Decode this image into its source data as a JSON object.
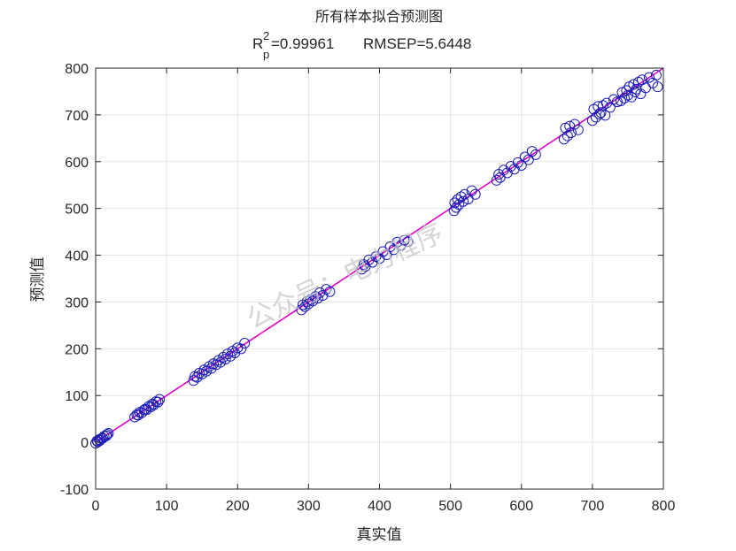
{
  "colors": {
    "background": "#ffffff",
    "axis": "#262626",
    "grid": "#e3e3e3",
    "points": "#1a1ab8",
    "fit_line": "#e000c8",
    "watermark": "#c7c7c7"
  },
  "watermark": "公众号：电力程序",
  "chart_data": {
    "type": "scatter",
    "title": "所有样本拟合预测图",
    "subtitle": {
      "r_symbol": "R",
      "r_superscript": "2",
      "r_subscript": "p",
      "r_value": "=0.99961",
      "rmsep_text": "RMSEP=5.6448"
    },
    "xlabel": "真实值",
    "ylabel": "预测值",
    "xlim": [
      0,
      800
    ],
    "ylim": [
      -100,
      800
    ],
    "xticks": [
      0,
      100,
      200,
      300,
      400,
      500,
      600,
      700,
      800
    ],
    "yticks": [
      -100,
      0,
      100,
      200,
      300,
      400,
      500,
      600,
      700,
      800
    ],
    "grid": true,
    "marker": "open-circle",
    "fit_line": {
      "x": [
        0,
        800
      ],
      "y": [
        0,
        800
      ]
    },
    "series": [
      {
        "x": [
          0,
          2,
          3,
          5,
          6,
          8,
          10,
          12,
          15,
          16,
          18,
          55,
          58,
          60,
          62,
          65,
          68,
          70,
          72,
          75,
          78,
          80,
          82,
          85,
          88,
          90,
          138,
          140,
          143,
          146,
          150,
          153,
          156,
          160,
          163,
          166,
          170,
          173,
          176,
          180,
          183,
          186,
          190,
          193,
          196,
          200,
          205,
          210,
          290,
          292,
          295,
          298,
          300,
          303,
          306,
          310,
          313,
          316,
          320,
          325,
          330,
          375,
          378,
          380,
          385,
          390,
          395,
          400,
          405,
          410,
          415,
          420,
          425,
          430,
          435,
          440,
          505,
          506,
          508,
          510,
          512,
          515,
          518,
          520,
          525,
          530,
          535,
          565,
          568,
          570,
          575,
          580,
          585,
          590,
          595,
          600,
          605,
          610,
          615,
          620,
          660,
          662,
          665,
          668,
          670,
          675,
          680,
          700,
          702,
          705,
          708,
          710,
          712,
          715,
          718,
          720,
          725,
          730,
          735,
          740,
          742,
          745,
          748,
          750,
          752,
          755,
          758,
          760,
          762,
          765,
          768,
          770,
          775,
          780,
          785,
          790,
          792
        ],
        "y": [
          -2,
          3,
          1,
          6,
          4,
          8,
          9,
          13,
          14,
          17,
          19,
          54,
          59,
          58,
          64,
          63,
          69,
          71,
          70,
          77,
          76,
          82,
          80,
          87,
          86,
          92,
          132,
          141,
          139,
          148,
          146,
          155,
          152,
          162,
          158,
          168,
          166,
          175,
          171,
          182,
          178,
          189,
          184,
          195,
          191,
          202,
          200,
          212,
          283,
          294,
          290,
          301,
          296,
          305,
          302,
          312,
          308,
          320,
          314,
          327,
          322,
          370,
          380,
          376,
          390,
          385,
          397,
          393,
          408,
          401,
          418,
          412,
          428,
          421,
          432,
          429,
          495,
          512,
          502,
          519,
          508,
          525,
          515,
          530,
          520,
          538,
          530,
          560,
          573,
          566,
          582,
          576,
          590,
          584,
          598,
          592,
          610,
          604,
          622,
          615,
          648,
          672,
          655,
          676,
          662,
          680,
          668,
          688,
          712,
          695,
          718,
          702,
          705,
          720,
          699,
          725,
          716,
          733,
          728,
          730,
          748,
          736,
          752,
          742,
          760,
          738,
          765,
          749,
          755,
          770,
          745,
          775,
          758,
          780,
          768,
          785,
          760
        ]
      }
    ]
  }
}
